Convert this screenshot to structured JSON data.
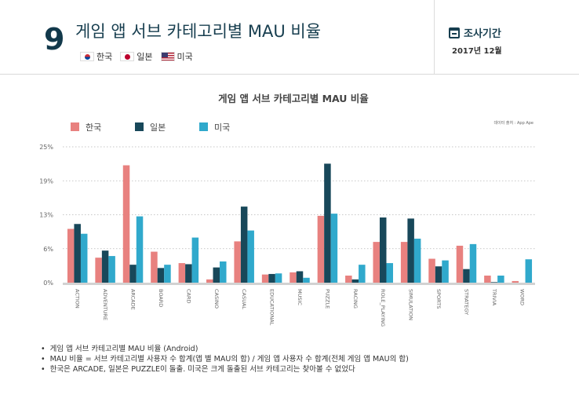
{
  "header": {
    "number": "9",
    "title": "게임 앱 서브 카테고리별 MAU 비율",
    "countries": [
      "한국",
      "일본",
      "미국"
    ],
    "period_label": "조사기간",
    "period_value": "2017년 12월"
  },
  "chart_data": {
    "type": "bar",
    "title": "게임 앱 서브 카테고리별 MAU 비율",
    "source": "데이터 출처 : App Ape",
    "categories": [
      "ACTION",
      "ADVENTURE",
      "ARCADE",
      "BOARD",
      "CARD",
      "CASINO",
      "CASUAL",
      "EDUCATIONAL",
      "MUSIC",
      "PUZZLE",
      "RACING",
      "ROLE_PLAYING",
      "SIMULATION",
      "SPORTS",
      "STRATEGY",
      "TRIVIA",
      "WORD"
    ],
    "series": [
      {
        "name": "한국",
        "color": "#e8817f",
        "values": [
          9.9,
          4.6,
          21.6,
          5.7,
          3.6,
          0.6,
          7.6,
          1.5,
          1.9,
          12.3,
          1.3,
          7.5,
          7.5,
          4.4,
          6.8,
          1.3,
          0.3
        ]
      },
      {
        "name": "일본",
        "color": "#18485a",
        "values": [
          10.8,
          5.9,
          3.3,
          2.7,
          3.4,
          2.8,
          14.0,
          1.6,
          2.1,
          21.9,
          0.6,
          12.0,
          11.8,
          3.0,
          2.5,
          0.1,
          0.0
        ]
      },
      {
        "name": "미국",
        "color": "#30a9cc",
        "values": [
          9.0,
          4.9,
          12.2,
          3.3,
          8.3,
          3.9,
          9.6,
          1.7,
          0.9,
          12.7,
          3.3,
          3.6,
          8.1,
          4.1,
          7.1,
          1.3,
          4.3
        ]
      }
    ],
    "ylim": [
      0,
      25
    ],
    "yticks": [
      0,
      6.25,
      12.5,
      18.75,
      25
    ],
    "ytick_labels": [
      "0%",
      "6%",
      "13%",
      "19%",
      "25%"
    ],
    "grid": true
  },
  "notes": [
    "게임 앱 서브 카테고리별 MAU 비율 (Android)",
    "MAU 비율 = 서브 카테고리별 사용자 수 합계(앱 별 MAU의 합) / 게임 앱 사용자 수 합계(전체 게임 앱 MAU의 합)",
    "한국은 ARCADE, 일본은 PUZZLE이 돌출. 미국은 크게 돌출된 서브 카테고리는 찾아볼 수 없었다"
  ]
}
